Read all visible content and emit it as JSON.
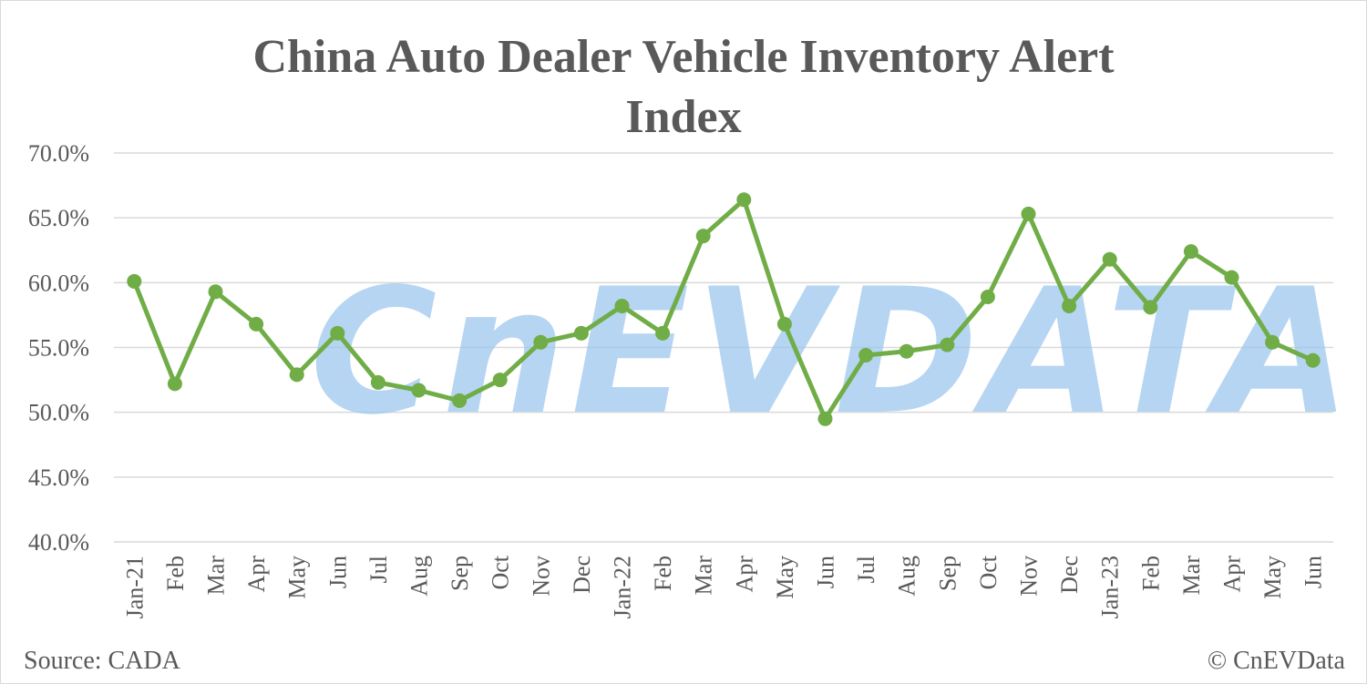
{
  "title_line1": "China Auto Dealer Vehicle Inventory Alert",
  "title_line2": "Index",
  "source": "Source: CADA",
  "copyright": "© CnEVData",
  "watermark": "CnEVDATA",
  "colors": {
    "line": "#70ad47",
    "grid": "#d9d9d9",
    "text": "#595959",
    "watermark": "#9ec7ee"
  },
  "chart_data": {
    "type": "line",
    "title": "China Auto Dealer Vehicle Inventory Alert Index",
    "xlabel": "",
    "ylabel": "",
    "ylim": [
      40,
      70
    ],
    "ytick_step": 5,
    "ytick_labels": [
      "40.0%",
      "45.0%",
      "50.0%",
      "55.0%",
      "60.0%",
      "65.0%",
      "70.0%"
    ],
    "grid": true,
    "legend": "none",
    "categories": [
      "Jan-21",
      "Feb",
      "Mar",
      "Apr",
      "May",
      "Jun",
      "Jul",
      "Aug",
      "Sep",
      "Oct",
      "Nov",
      "Dec",
      "Jan-22",
      "Feb",
      "Mar",
      "Apr",
      "May",
      "Jun",
      "Jul",
      "Aug",
      "Sep",
      "Oct",
      "Nov",
      "Dec",
      "Jan-23",
      "Feb",
      "Mar",
      "Apr",
      "May",
      "Jun"
    ],
    "series": [
      {
        "values": [
          60.1,
          52.2,
          59.3,
          56.8,
          52.9,
          56.1,
          52.3,
          51.7,
          50.9,
          52.5,
          55.4,
          56.1,
          58.2,
          56.1,
          63.6,
          66.4,
          56.8,
          49.5,
          54.4,
          54.7,
          55.2,
          58.9,
          65.3,
          58.2,
          61.8,
          58.1,
          62.4,
          60.4,
          55.4,
          54.0
        ]
      }
    ]
  }
}
